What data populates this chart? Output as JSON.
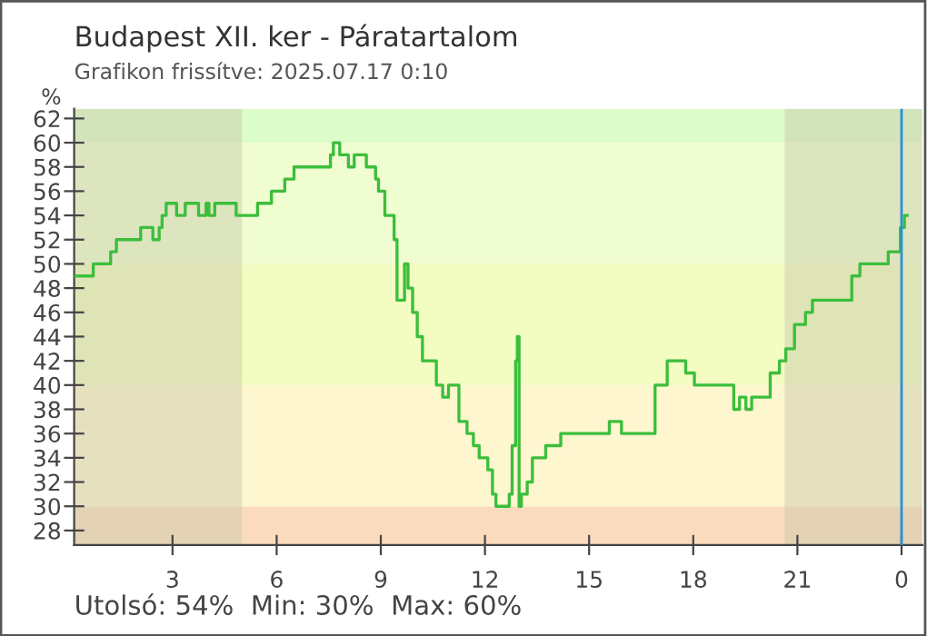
{
  "chart_data": {
    "type": "step",
    "title": "Budapest XII. ker - Páratartalom",
    "subtitle": "Grafikon frissítve: 2025.07.17 0:10",
    "ylabel": "%",
    "annotations": [
      "Utolsó: 54%  Min: 30%  Max: 60%"
    ],
    "xlim": [
      "2025-07-16T00:10",
      "2025-07-17T00:36"
    ],
    "xticks": [
      {
        "value": "2025-07-16T03:00",
        "label": "3"
      },
      {
        "value": "2025-07-16T06:00",
        "label": "6"
      },
      {
        "value": "2025-07-16T09:00",
        "label": "9"
      },
      {
        "value": "2025-07-16T12:00",
        "label": "12"
      },
      {
        "value": "2025-07-16T15:00",
        "label": "15"
      },
      {
        "value": "2025-07-16T18:00",
        "label": "18"
      },
      {
        "value": "2025-07-16T21:00",
        "label": "21"
      },
      {
        "value": "2025-07-17T00:00",
        "label": "0"
      }
    ],
    "ylim": [
      26.8,
      62.8
    ],
    "yticks": [
      28,
      30,
      32,
      34,
      36,
      38,
      40,
      42,
      44,
      46,
      48,
      50,
      52,
      54,
      56,
      58,
      60,
      62
    ],
    "bands": [
      {
        "axis": "y",
        "from": 26.8,
        "to": 30,
        "color": "#fadbbe"
      },
      {
        "axis": "y",
        "from": 30,
        "to": 40,
        "color": "#fdf6cf"
      },
      {
        "axis": "y",
        "from": 40,
        "to": 50,
        "color": "#f3fcc1"
      },
      {
        "axis": "y",
        "from": 50,
        "to": 60,
        "color": "#effdd1"
      },
      {
        "axis": "y",
        "from": 60,
        "to": 62.8,
        "color": "#dcfcca"
      },
      {
        "axis": "x",
        "from": "2025-07-16T00:10",
        "to": "2025-07-16T05:00",
        "color": "#c8c8a8"
      },
      {
        "axis": "x",
        "from": "2025-07-16T20:38",
        "to": "2025-07-17T00:36",
        "color": "#c8c8a8"
      }
    ],
    "ref_lines": [
      {
        "axis": "x",
        "value": "2025-07-17T00:00",
        "color": "#2a8fd8"
      }
    ],
    "series": [
      {
        "color": "#3cbe3c",
        "x": [
          "2025-07-16T00:12",
          "2025-07-16T00:43",
          "2025-07-16T01:13",
          "2025-07-16T01:23",
          "2025-07-16T02:05",
          "2025-07-16T02:26",
          "2025-07-16T02:37",
          "2025-07-16T02:42",
          "2025-07-16T02:49",
          "2025-07-16T03:07",
          "2025-07-16T03:22",
          "2025-07-16T03:45",
          "2025-07-16T03:58",
          "2025-07-16T04:03",
          "2025-07-16T04:13",
          "2025-07-16T04:50",
          "2025-07-16T05:27",
          "2025-07-16T05:51",
          "2025-07-16T06:14",
          "2025-07-16T06:30",
          "2025-07-16T07:33",
          "2025-07-16T07:38",
          "2025-07-16T07:49",
          "2025-07-16T08:04",
          "2025-07-16T08:14",
          "2025-07-16T08:35",
          "2025-07-16T08:51",
          "2025-07-16T08:56",
          "2025-07-16T09:07",
          "2025-07-16T09:23",
          "2025-07-16T09:28",
          "2025-07-16T09:34",
          "2025-07-16T09:41",
          "2025-07-16T09:47",
          "2025-07-16T09:55",
          "2025-07-16T10:03",
          "2025-07-16T10:12",
          "2025-07-16T10:26",
          "2025-07-16T10:36",
          "2025-07-16T10:47",
          "2025-07-16T10:57",
          "2025-07-16T11:15",
          "2025-07-16T11:29",
          "2025-07-16T11:40",
          "2025-07-16T11:50",
          "2025-07-16T12:05",
          "2025-07-16T12:13",
          "2025-07-16T12:19",
          "2025-07-16T12:37",
          "2025-07-16T12:42",
          "2025-07-16T12:47",
          "2025-07-16T12:53",
          "2025-07-16T12:56",
          "2025-07-16T12:59",
          "2025-07-16T13:03",
          "2025-07-16T13:13",
          "2025-07-16T13:22",
          "2025-07-16T13:45",
          "2025-07-16T14:11",
          "2025-07-16T15:35",
          "2025-07-16T15:56",
          "2025-07-16T16:43",
          "2025-07-16T16:54",
          "2025-07-16T17:15",
          "2025-07-16T17:36",
          "2025-07-16T17:47",
          "2025-07-16T18:02",
          "2025-07-16T19:00",
          "2025-07-16T19:10",
          "2025-07-16T19:20",
          "2025-07-16T19:31",
          "2025-07-16T19:41",
          "2025-07-16T19:58",
          "2025-07-16T20:13",
          "2025-07-16T20:29",
          "2025-07-16T20:40",
          "2025-07-16T20:55",
          "2025-07-16T21:14",
          "2025-07-16T21:26",
          "2025-07-16T22:19",
          "2025-07-16T22:34",
          "2025-07-16T22:48",
          "2025-07-16T23:22",
          "2025-07-16T23:37",
          "2025-07-16T23:51",
          "2025-07-16T23:58",
          "2025-07-17T00:05",
          "2025-07-17T00:10"
        ],
        "values": [
          49,
          50,
          51,
          52,
          53,
          52,
          53,
          54,
          55,
          54,
          55,
          54,
          55,
          54,
          55,
          54,
          55,
          56,
          57,
          58,
          59,
          60,
          59,
          58,
          59,
          58,
          57,
          56,
          54,
          52,
          47,
          47,
          50,
          48,
          46,
          44,
          42,
          42,
          40,
          39,
          40,
          37,
          36,
          35,
          34,
          33,
          31,
          30,
          30,
          31,
          35,
          42,
          44,
          30,
          31,
          32,
          34,
          35,
          36,
          37,
          36,
          36,
          40,
          42,
          42,
          41,
          40,
          40,
          38,
          39,
          38,
          39,
          39,
          41,
          42,
          43,
          45,
          46,
          47,
          47,
          49,
          50,
          50,
          51,
          51,
          53,
          54,
          54
        ]
      }
    ]
  }
}
